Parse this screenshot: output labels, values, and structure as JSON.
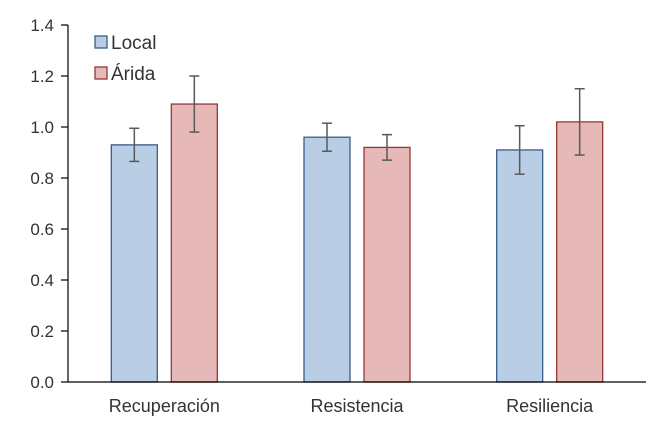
{
  "chart_data": {
    "type": "bar",
    "title": "",
    "xlabel": "",
    "ylabel": "",
    "categories": [
      "Recuperación",
      "Resistencia",
      "Resiliencia"
    ],
    "series": [
      {
        "name": "Local",
        "values": [
          0.93,
          0.96,
          0.91
        ],
        "error": [
          0.065,
          0.055,
          0.095
        ],
        "fill": "#b9cde5",
        "stroke": "#385d8a"
      },
      {
        "name": "Árida",
        "values": [
          1.09,
          0.92,
          1.02
        ],
        "error": [
          0.11,
          0.05,
          0.13
        ],
        "fill": "#e6b9b8",
        "stroke": "#953735"
      }
    ],
    "ylim": [
      0,
      1.4
    ],
    "yticks": [
      "0.0",
      "0.2",
      "0.4",
      "0.6",
      "0.8",
      "1.0",
      "1.2",
      "1.4"
    ],
    "grid": false,
    "legend_position": "top-left",
    "colors": {
      "axis": "#000000",
      "error_bar": "#595959"
    }
  }
}
